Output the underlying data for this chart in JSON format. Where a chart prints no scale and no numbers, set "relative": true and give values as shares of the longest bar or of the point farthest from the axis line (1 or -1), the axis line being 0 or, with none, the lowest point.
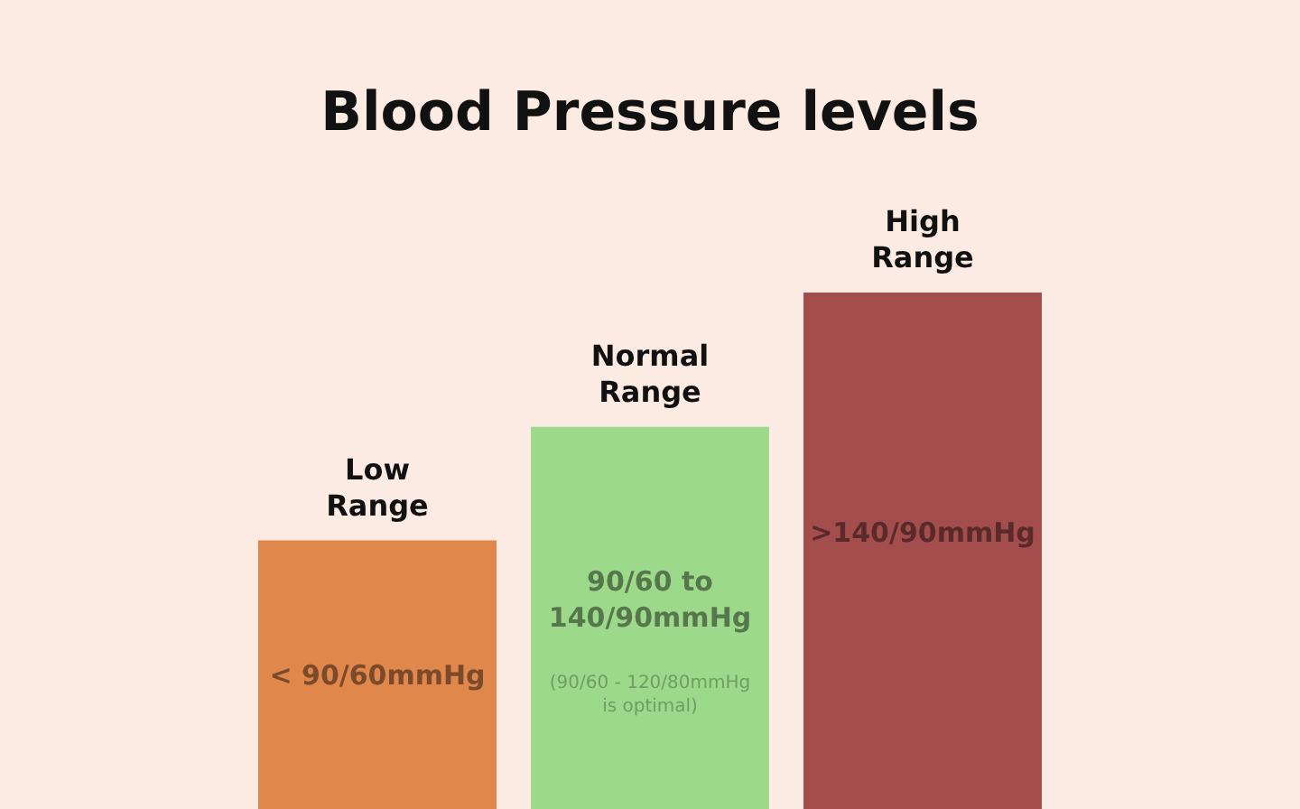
{
  "chart_data": {
    "type": "bar",
    "title": "Blood Pressure levels",
    "relative": true,
    "categories": [
      "Low Range",
      "Normal Range",
      "High Range"
    ],
    "values": [
      0.52,
      0.74,
      1
    ],
    "colors": [
      "#e0874c",
      "#9dd98b",
      "#a34d4d"
    ],
    "annotations": [
      "< 90/60mmHg",
      "90/60 to 140/90mmHg",
      "(90/60 - 120/80mmHg is optimal)",
      ">140/90mmHg"
    ],
    "legend": false
  }
}
